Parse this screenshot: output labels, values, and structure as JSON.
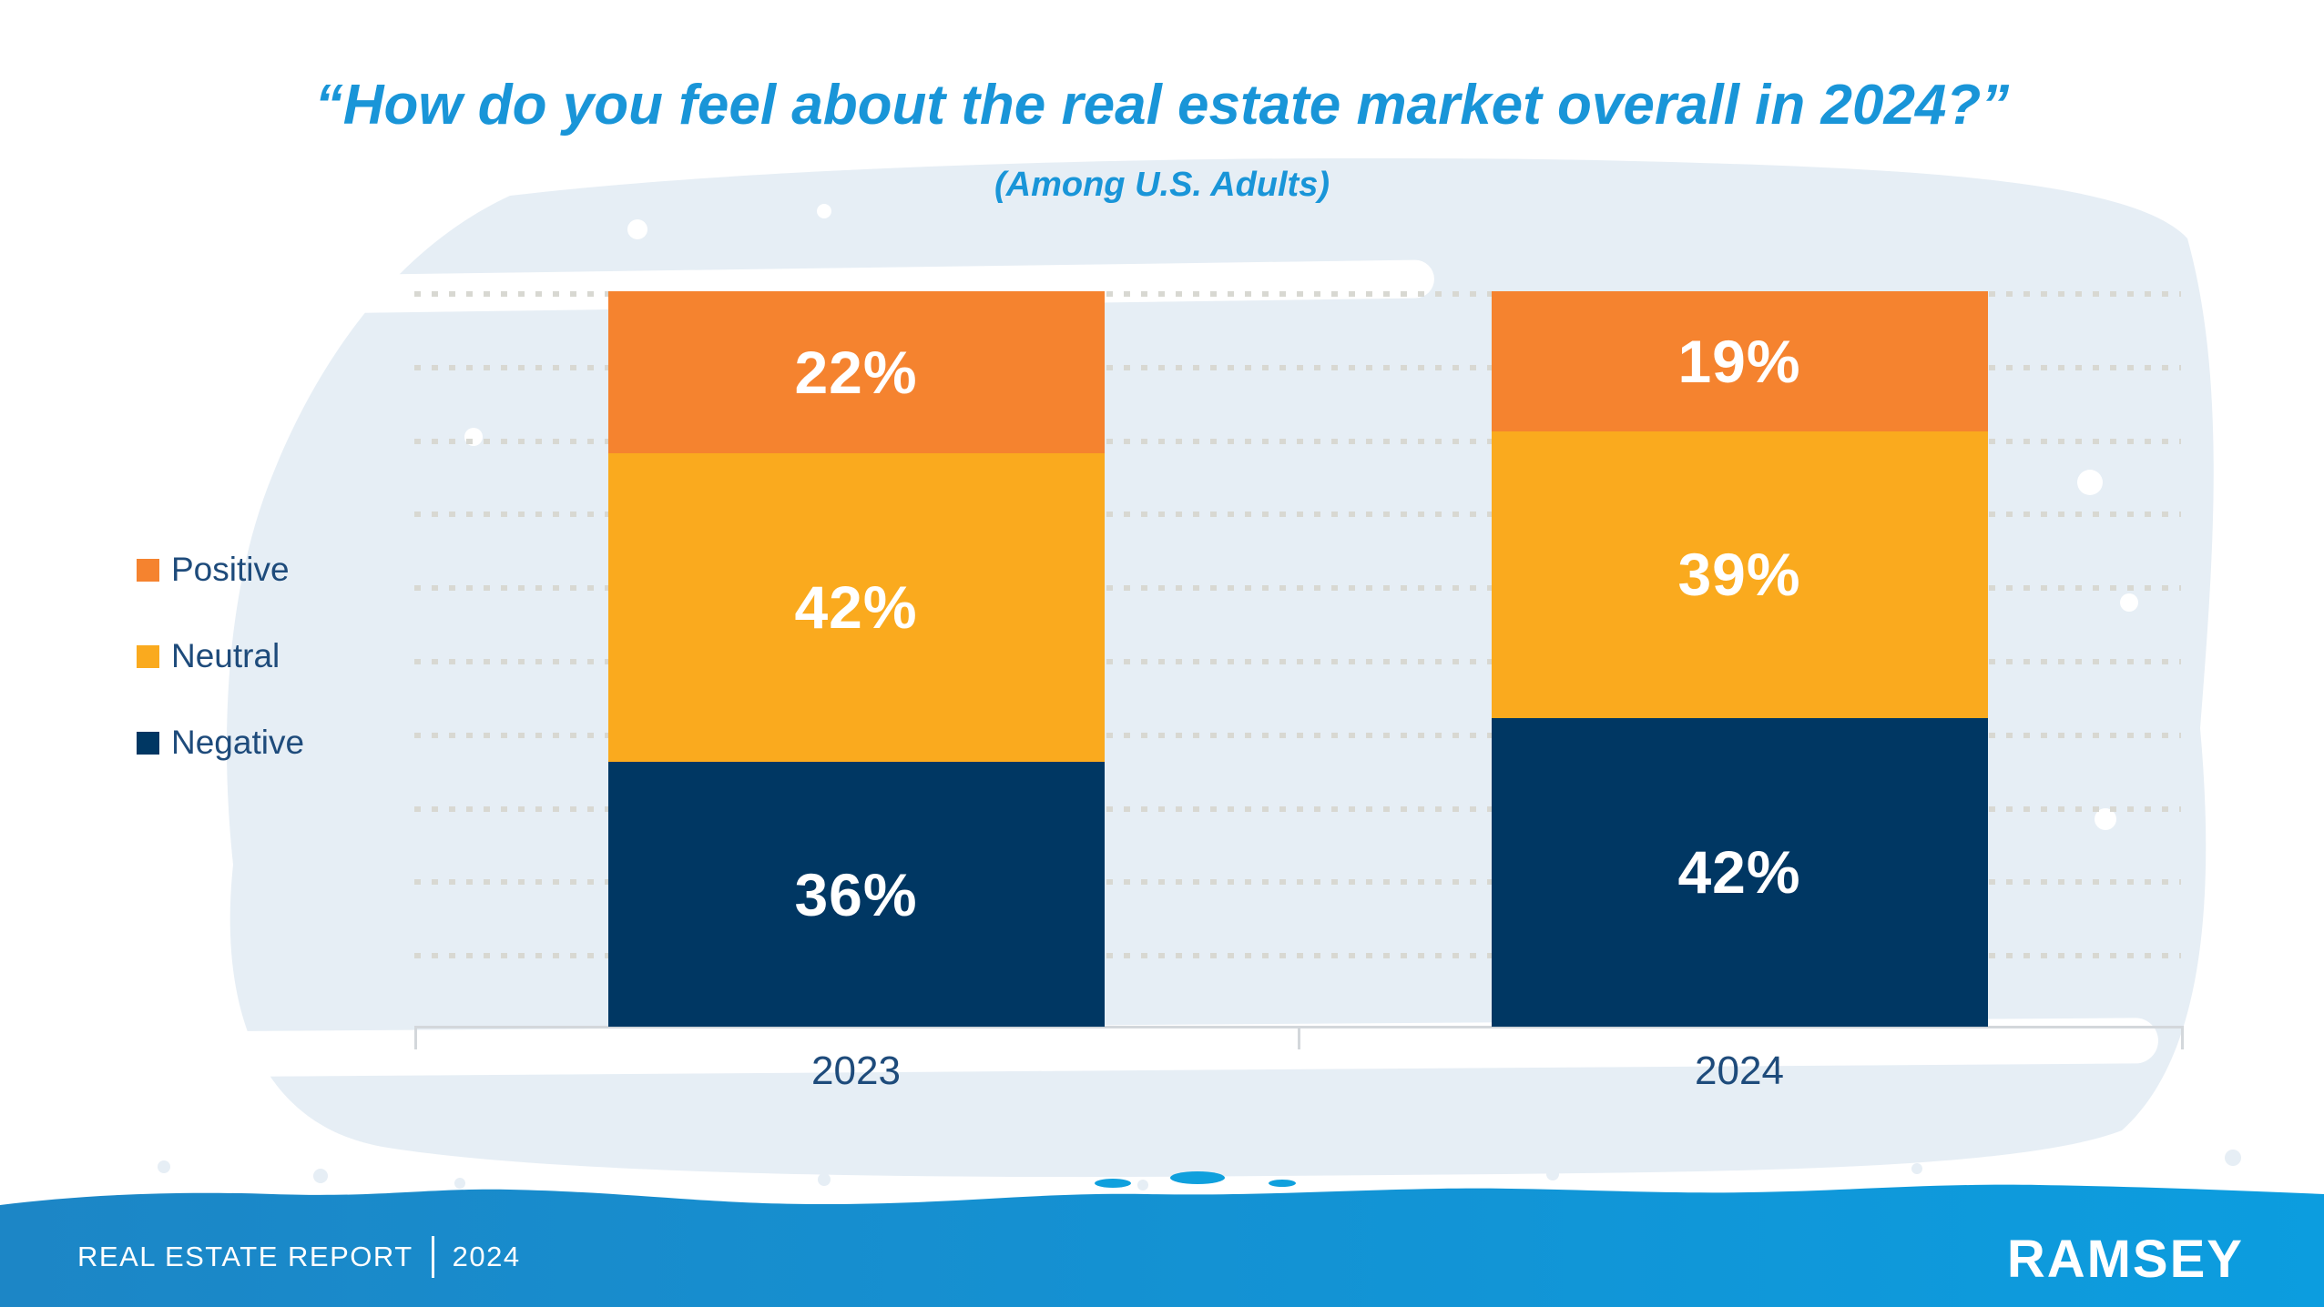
{
  "title": "“How do you feel about the real estate market overall in 2024?”",
  "subtitle": "(Among U.S. Adults)",
  "chart_data": {
    "type": "bar",
    "variant": "stacked-column",
    "title": "How do you feel about the real estate market overall in 2024?",
    "subtitle": "(Among U.S. Adults)",
    "categories": [
      "2023",
      "2024"
    ],
    "series": [
      {
        "name": "Positive",
        "color": "#F5832F",
        "values": [
          22,
          19
        ]
      },
      {
        "name": "Neutral",
        "color": "#FAAA1E",
        "values": [
          42,
          39
        ]
      },
      {
        "name": "Negative",
        "color": "#003763",
        "values": [
          36,
          42
        ]
      }
    ],
    "value_label_format": "percent",
    "ylim": [
      0,
      100
    ],
    "gridline_step": 10,
    "grid": "dotted-horizontal",
    "legend_position": "left"
  },
  "colors": {
    "title_blue": "#1995D8",
    "label_navy": "#1E4B7B",
    "wash_blue": "#E6EEF5",
    "gridline_gray": "#D8D8D2",
    "axis_gray": "#D3D7DB",
    "footer_blue_left": "#1C86C6",
    "footer_blue_right": "#0C9DDF",
    "value_label_white": "#FFFFFF"
  },
  "footer": {
    "report_label": "REAL ESTATE REPORT",
    "divider": "|",
    "year": "2024",
    "brand": "RAMSEY"
  }
}
